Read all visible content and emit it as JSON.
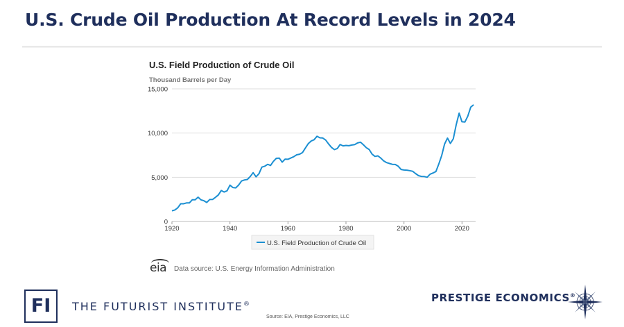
{
  "slide": {
    "title": "U.S. Crude Oil Production At Record Levels in 2024"
  },
  "footer": {
    "eia_logo": "eia",
    "eia_source": "Data source: U.S. Energy Information Administration",
    "futurist_logo": "FI",
    "futurist_name": "THE FUTURIST INSTITUTE",
    "futurist_mark": "®",
    "source_note": "Source: EIA, Prestige Economics, LLC",
    "prestige_name": "PRESTIGE ECONOMICS",
    "prestige_mark": "®",
    "compass_icon": "compass-rose-icon"
  },
  "colors": {
    "title": "#1f2f5c",
    "series": "#1b8fd2",
    "grid": "#dddddd",
    "axis_text": "#333333"
  },
  "chart_data": {
    "type": "line",
    "title": "U.S. Field Production of Crude Oil",
    "ylabel": "Thousand Barrels per Day",
    "xlabel": "",
    "xlim": [
      1920,
      2024.7
    ],
    "ylim": [
      0,
      15000
    ],
    "y_ticks": [
      0,
      5000,
      10000,
      15000
    ],
    "y_tick_labels": [
      "0",
      "5,000",
      "10,000",
      "15,000"
    ],
    "x_ticks": [
      1920,
      1940,
      1960,
      1980,
      2000,
      2020
    ],
    "x_tick_labels": [
      "1920",
      "1940",
      "1960",
      "1980",
      "2000",
      "2020"
    ],
    "grid": "horizontal",
    "legend": "bottom-center",
    "series": [
      {
        "name": "U.S. Field Production of Crude Oil",
        "x": [
          1920,
          1921,
          1922,
          1923,
          1924,
          1925,
          1926,
          1927,
          1928,
          1929,
          1930,
          1931,
          1932,
          1933,
          1934,
          1935,
          1936,
          1937,
          1938,
          1939,
          1940,
          1941,
          1942,
          1943,
          1944,
          1945,
          1946,
          1947,
          1948,
          1949,
          1950,
          1951,
          1952,
          1953,
          1954,
          1955,
          1956,
          1957,
          1958,
          1959,
          1960,
          1961,
          1962,
          1963,
          1964,
          1965,
          1966,
          1967,
          1968,
          1969,
          1970,
          1971,
          1972,
          1973,
          1974,
          1975,
          1976,
          1977,
          1978,
          1979,
          1980,
          1981,
          1982,
          1983,
          1984,
          1985,
          1986,
          1987,
          1988,
          1989,
          1990,
          1991,
          1992,
          1993,
          1994,
          1995,
          1996,
          1997,
          1998,
          1999,
          2000,
          2001,
          2002,
          2003,
          2004,
          2005,
          2006,
          2007,
          2008,
          2009,
          2010,
          2011,
          2012,
          2013,
          2014,
          2015,
          2016,
          2017,
          2018,
          2019,
          2020,
          2021,
          2022,
          2023,
          2024
        ],
        "values": [
          1200,
          1300,
          1550,
          2000,
          2000,
          2100,
          2100,
          2450,
          2450,
          2750,
          2450,
          2350,
          2150,
          2480,
          2490,
          2730,
          3000,
          3500,
          3330,
          3470,
          4110,
          3840,
          3800,
          4120,
          4580,
          4700,
          4750,
          5090,
          5520,
          5050,
          5400,
          6150,
          6250,
          6460,
          6340,
          6810,
          7150,
          7170,
          6710,
          7050,
          7040,
          7180,
          7330,
          7540,
          7610,
          7800,
          8300,
          8800,
          9100,
          9240,
          9640,
          9460,
          9440,
          9210,
          8770,
          8380,
          8130,
          8250,
          8710,
          8550,
          8600,
          8570,
          8650,
          8690,
          8880,
          8970,
          8680,
          8350,
          8140,
          7610,
          7360,
          7420,
          7170,
          6850,
          6660,
          6560,
          6460,
          6450,
          6250,
          5880,
          5820,
          5800,
          5750,
          5680,
          5420,
          5180,
          5100,
          5080,
          5000,
          5350,
          5480,
          5650,
          6500,
          7470,
          8760,
          9430,
          8830,
          9350,
          10950,
          12250,
          11280,
          11250,
          11910,
          12930,
          13200
        ]
      }
    ]
  }
}
